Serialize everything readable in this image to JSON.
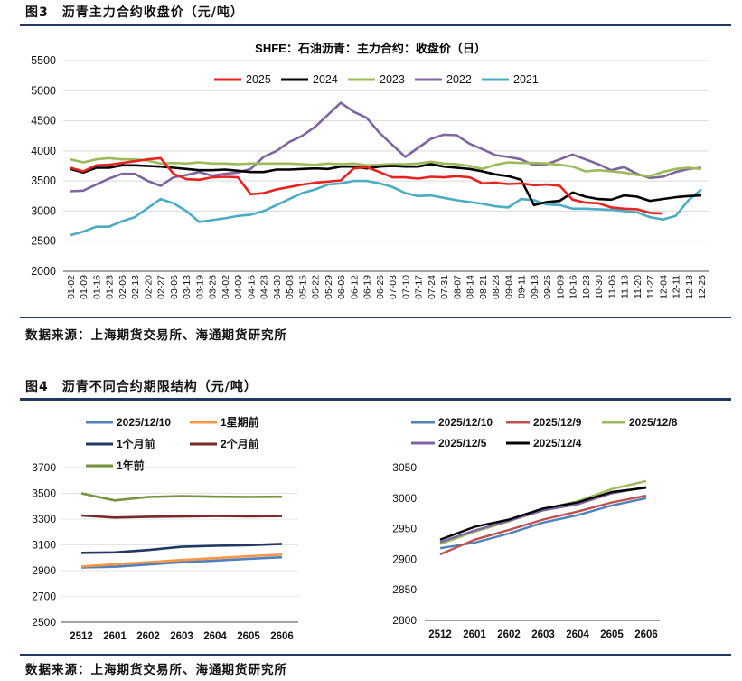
{
  "figure3": {
    "title": "图3　沥青主力合约收盘价（元/吨）",
    "source": "数据来源：上海期货交易所、海通期货研究所"
  },
  "figure4": {
    "title": "图4　沥青不同合约期限结构（元/吨）",
    "source": "数据来源：上海期货交易所、海通期货研究所"
  },
  "chart_data": [
    {
      "id": "main",
      "type": "line",
      "title": "SHFE：石油沥青：主力合约：收盘价（日）",
      "xlabel": "",
      "ylabel": "",
      "ylim": [
        2000,
        5500
      ],
      "yticks": [
        2000,
        2500,
        3000,
        3500,
        4000,
        4500,
        5000,
        5500
      ],
      "categories": [
        "01-02",
        "01-09",
        "01-16",
        "01-23",
        "02-06",
        "02-13",
        "02-20",
        "02-27",
        "03-06",
        "03-13",
        "03-19",
        "03-26",
        "04-02",
        "04-09",
        "04-16",
        "04-23",
        "04-30",
        "05-08",
        "05-15",
        "05-22",
        "05-29",
        "06-06",
        "06-12",
        "06-19",
        "06-26",
        "07-03",
        "07-10",
        "07-17",
        "07-24",
        "07-31",
        "08-07",
        "08-14",
        "08-21",
        "08-28",
        "09-04",
        "09-11",
        "09-18",
        "09-25",
        "10-09",
        "10-16",
        "10-23",
        "10-30",
        "11-06",
        "11-13",
        "11-20",
        "11-27",
        "12-04",
        "12-11",
        "12-18",
        "12-25"
      ],
      "legend_position": "top",
      "series": [
        {
          "name": "2025",
          "color": "#e8231f",
          "values": [
            3720,
            3660,
            3760,
            3770,
            3800,
            3830,
            3860,
            3880,
            3620,
            3530,
            3520,
            3560,
            3570,
            3560,
            3280,
            3300,
            3360,
            3400,
            3440,
            3470,
            3490,
            3510,
            3710,
            3730,
            3650,
            3560,
            3560,
            3540,
            3570,
            3560,
            3580,
            3560,
            3460,
            3470,
            3450,
            3460,
            3430,
            3440,
            3420,
            3190,
            3140,
            3130,
            3060,
            3040,
            3030,
            2970,
            2960,
            null,
            null,
            null
          ]
        },
        {
          "name": "2024",
          "color": "#000000",
          "values": [
            3700,
            3640,
            3720,
            3720,
            3760,
            3760,
            3750,
            3740,
            3720,
            3700,
            3680,
            3680,
            3690,
            3670,
            3650,
            3650,
            3690,
            3690,
            3700,
            3710,
            3700,
            3740,
            3740,
            3710,
            3740,
            3750,
            3740,
            3740,
            3780,
            3740,
            3720,
            3700,
            3660,
            3610,
            3580,
            3520,
            3100,
            3150,
            3170,
            3310,
            3240,
            3200,
            3190,
            3260,
            3240,
            3170,
            3200,
            3230,
            3250,
            3260
          ]
        },
        {
          "name": "2023",
          "color": "#9bbb59",
          "values": [
            3860,
            3810,
            3860,
            3880,
            3860,
            3860,
            3840,
            3790,
            3800,
            3790,
            3810,
            3790,
            3790,
            3780,
            3790,
            3790,
            3790,
            3790,
            3780,
            3770,
            3790,
            3780,
            3790,
            3760,
            3770,
            3780,
            3780,
            3790,
            3820,
            3790,
            3780,
            3750,
            3700,
            3770,
            3810,
            3800,
            3800,
            3790,
            3770,
            3740,
            3660,
            3680,
            3660,
            3640,
            3600,
            3580,
            3650,
            3700,
            3720,
            3700
          ]
        },
        {
          "name": "2022",
          "color": "#8064a2",
          "values": [
            3330,
            3340,
            3440,
            3540,
            3620,
            3620,
            3500,
            3420,
            3560,
            3600,
            3650,
            3590,
            3620,
            3640,
            3700,
            3900,
            4000,
            4150,
            4250,
            4400,
            4600,
            4800,
            4650,
            4550,
            4300,
            4100,
            3900,
            4050,
            4200,
            4270,
            4260,
            4120,
            4030,
            3930,
            3900,
            3860,
            3760,
            3780,
            3860,
            3940,
            3860,
            3780,
            3680,
            3730,
            3620,
            3550,
            3570,
            3650,
            3700,
            3720
          ]
        },
        {
          "name": "2021",
          "color": "#4bacc6",
          "values": [
            2600,
            2660,
            2740,
            2740,
            2830,
            2900,
            3050,
            3200,
            3130,
            3000,
            2820,
            2850,
            2880,
            2920,
            2940,
            3000,
            3100,
            3200,
            3300,
            3360,
            3440,
            3460,
            3500,
            3500,
            3460,
            3400,
            3300,
            3250,
            3260,
            3220,
            3180,
            3150,
            3120,
            3080,
            3060,
            3200,
            3180,
            3110,
            3100,
            3040,
            3040,
            3030,
            3020,
            3000,
            2980,
            2900,
            2860,
            2920,
            3180,
            3360
          ]
        }
      ]
    },
    {
      "id": "left",
      "type": "line",
      "title": "",
      "ylim": [
        2500,
        3700
      ],
      "yticks": [
        2500,
        2700,
        2900,
        3100,
        3300,
        3500,
        3700
      ],
      "categories": [
        "2512",
        "2601",
        "2602",
        "2603",
        "2604",
        "2605",
        "2606"
      ],
      "legend_position": "top",
      "series": [
        {
          "name": "2025/12/10",
          "color": "#4f81bd",
          "values": [
            2925,
            2930,
            2948,
            2965,
            2978,
            2992,
            3004
          ]
        },
        {
          "name": "1星期前",
          "color": "#f79646",
          "values": [
            2932,
            2950,
            2965,
            2983,
            2997,
            3012,
            3024
          ]
        },
        {
          "name": "1个月前",
          "color": "#1f3864",
          "values": [
            3038,
            3042,
            3060,
            3085,
            3093,
            3098,
            3108
          ]
        },
        {
          "name": "2个月前",
          "color": "#7b2a2a",
          "values": [
            3328,
            3312,
            3318,
            3320,
            3324,
            3322,
            3324
          ]
        },
        {
          "name": "1年前",
          "color": "#76923c",
          "values": [
            3500,
            3445,
            3472,
            3478,
            3474,
            3472,
            3474
          ]
        }
      ]
    },
    {
      "id": "right",
      "type": "line",
      "title": "",
      "ylim": [
        2800,
        3050
      ],
      "yticks": [
        2800,
        2850,
        2900,
        2950,
        3000,
        3050
      ],
      "categories": [
        "2512",
        "2601",
        "2602",
        "2603",
        "2604",
        "2605",
        "2606"
      ],
      "legend_position": "top",
      "series": [
        {
          "name": "2025/12/10",
          "color": "#4f81bd",
          "values": [
            2918,
            2927,
            2942,
            2960,
            2972,
            2988,
            3000
          ]
        },
        {
          "name": "2025/12/9",
          "color": "#c0504d",
          "values": [
            2908,
            2932,
            2948,
            2965,
            2978,
            2993,
            3004
          ]
        },
        {
          "name": "2025/12/8",
          "color": "#9bbb59",
          "values": [
            2925,
            2945,
            2962,
            2982,
            2995,
            3015,
            3028
          ]
        },
        {
          "name": "2025/12/5",
          "color": "#8064a2",
          "values": [
            2928,
            2947,
            2963,
            2980,
            2990,
            3008,
            3018
          ]
        },
        {
          "name": "2025/12/4",
          "color": "#000000",
          "values": [
            2932,
            2953,
            2965,
            2983,
            2993,
            3010,
            3017
          ]
        }
      ]
    }
  ]
}
